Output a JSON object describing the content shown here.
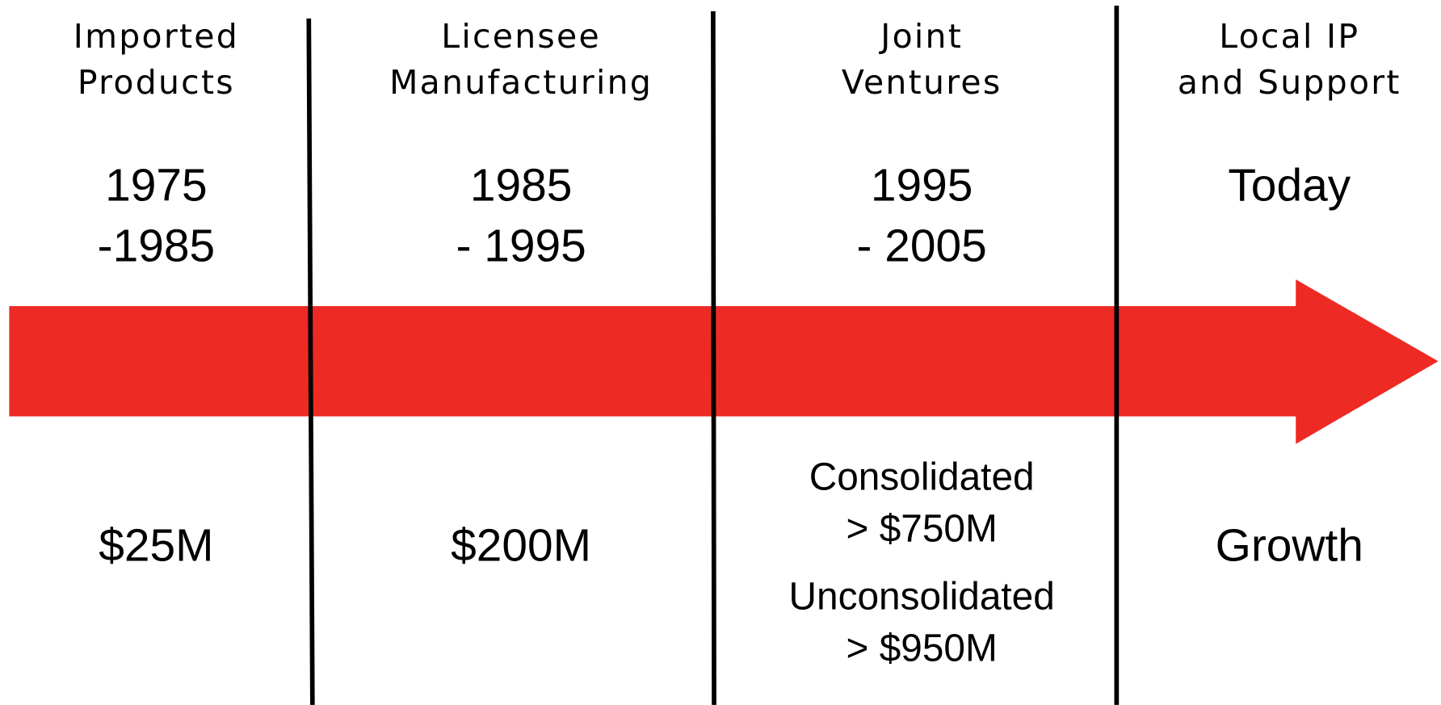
{
  "columns": [
    {
      "heading": [
        "Imported",
        "Products"
      ],
      "period": [
        "1975",
        "-1985"
      ],
      "revenue": [
        "$25M"
      ]
    },
    {
      "heading": [
        "Licensee",
        "Manufacturing"
      ],
      "period": [
        "1985",
        "- 1995"
      ],
      "revenue": [
        "$200M"
      ]
    },
    {
      "heading": [
        "Joint",
        "Ventures"
      ],
      "period": [
        "1995",
        "- 2005"
      ],
      "revenue": [
        "Consolidated",
        "> $750M",
        "Unconsolidated",
        "> $950M"
      ]
    },
    {
      "heading": [
        "Local IP",
        "and Support"
      ],
      "period": [
        "Today"
      ],
      "revenue": [
        "Growth"
      ]
    }
  ]
}
